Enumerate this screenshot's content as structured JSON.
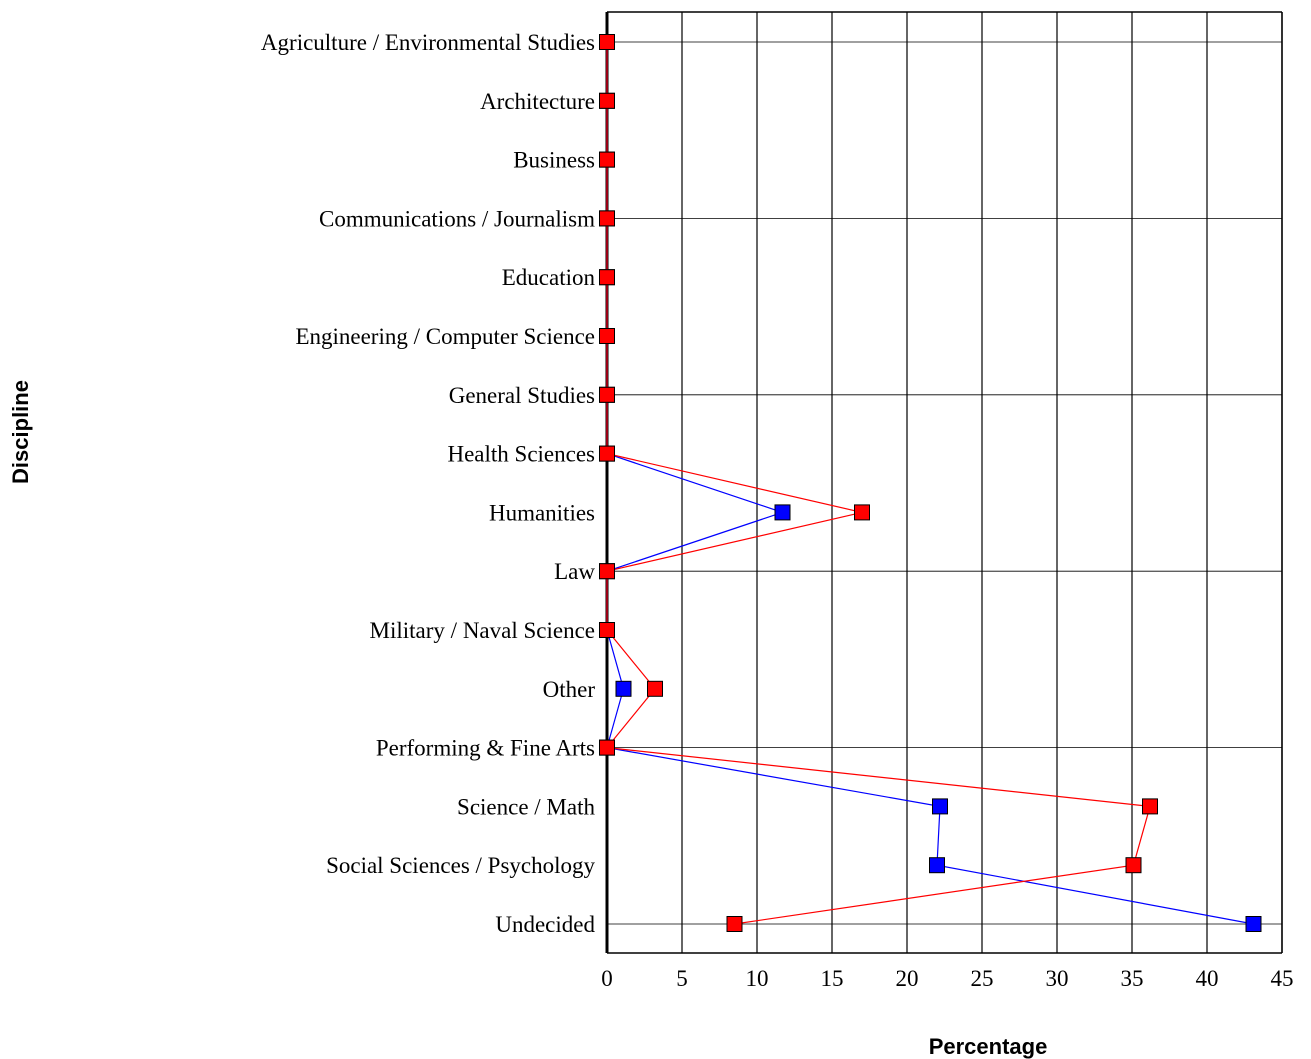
{
  "chart_data": {
    "type": "line",
    "orientation": "horizontal",
    "xlabel": "Percentage",
    "ylabel": "Discipline",
    "xlim": [
      0,
      45
    ],
    "xticks": [
      0,
      5,
      10,
      15,
      20,
      25,
      30,
      35,
      40,
      45
    ],
    "grid": "vertical lines every 5; horizontal lines every third category",
    "categories": [
      "Agriculture / Environmental Studies",
      "Architecture",
      "Business",
      "Communications / Journalism",
      "Education",
      "Engineering / Computer Science",
      "General Studies",
      "Health Sciences",
      "Humanities",
      "Law",
      "Military / Naval Science",
      "Other",
      "Performing & Fine Arts",
      "Science / Math",
      "Social Sciences / Psychology",
      "Undecided"
    ],
    "series": [
      {
        "color": "#0000ff",
        "values": [
          0,
          0,
          0,
          0,
          0,
          0,
          0,
          0,
          11.7,
          0,
          0,
          1.1,
          0,
          22.2,
          22,
          43.1
        ]
      },
      {
        "color": "#ff0000",
        "values": [
          0,
          0,
          0,
          0,
          0,
          0,
          0,
          0,
          17,
          0,
          0,
          3.2,
          0,
          36.2,
          35.1,
          8.5
        ]
      }
    ]
  }
}
